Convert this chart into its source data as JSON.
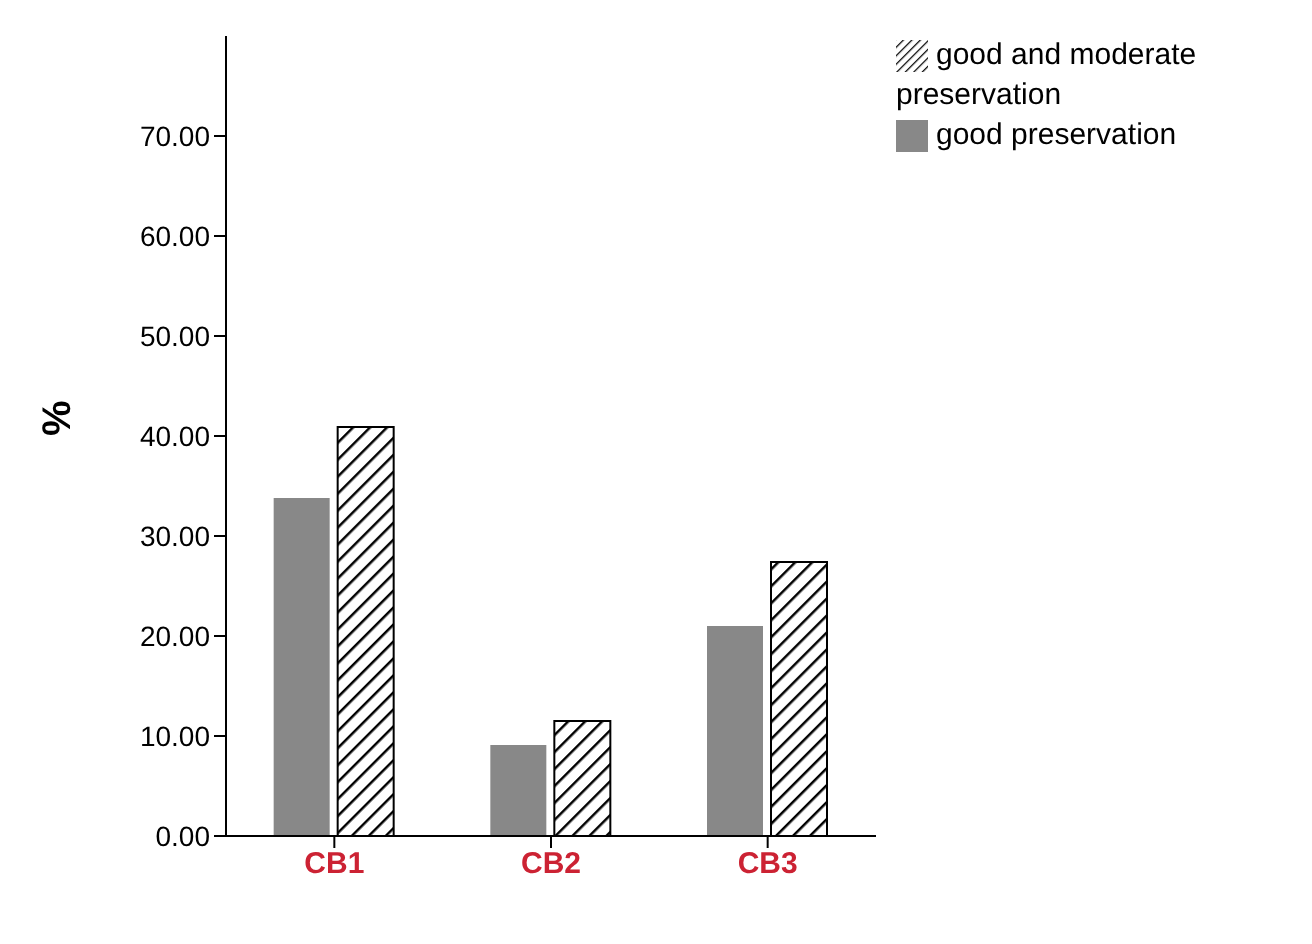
{
  "chart_data": {
    "type": "bar",
    "ylabel": "%",
    "categories": [
      "CB1",
      "CB2",
      "CB3"
    ],
    "series": [
      {
        "name": "good preservation",
        "color": "#888888",
        "values": [
          33.8,
          9.1,
          21.0
        ]
      },
      {
        "name": "good and moderate preservation",
        "color": "#000000",
        "values": [
          40.9,
          11.5,
          27.4
        ]
      }
    ],
    "ylim": [
      0,
      80
    ],
    "yticks": [
      {
        "value": 0,
        "label": "0.00"
      },
      {
        "value": 10,
        "label": "10.00"
      },
      {
        "value": 20,
        "label": "20.00"
      },
      {
        "value": 30,
        "label": "30.00"
      },
      {
        "value": 40,
        "label": "40.00"
      },
      {
        "value": 50,
        "label": "50.00"
      },
      {
        "value": 60,
        "label": "60.00"
      },
      {
        "value": 70,
        "label": "70.00"
      }
    ],
    "grid": false,
    "legend": "top right"
  }
}
